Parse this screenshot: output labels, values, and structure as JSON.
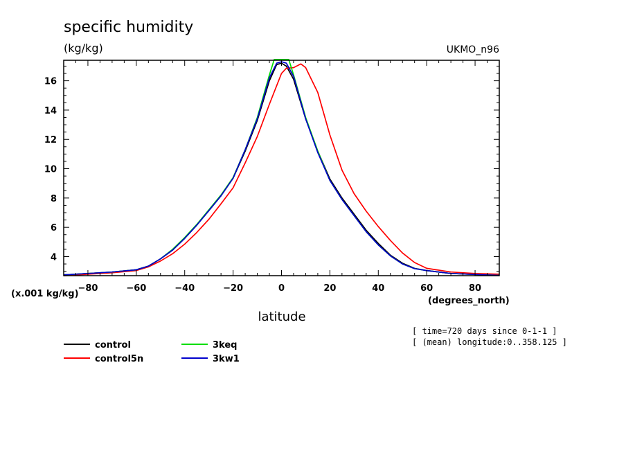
{
  "chart_data": {
    "type": "line",
    "title": "specific humidity",
    "units": "(kg/kg)",
    "model_label": "UKMO_n96",
    "ylabel_scale": "(x.001 kg/kg)",
    "xlabel": "latitude",
    "xunits": "(degrees_north)",
    "xlim": [
      -90,
      90
    ],
    "ylim": [
      2.7,
      17.4
    ],
    "xticks": [
      -80,
      -60,
      -40,
      -20,
      0,
      20,
      40,
      60,
      80
    ],
    "yticks": [
      4,
      6,
      8,
      10,
      12,
      14,
      16
    ],
    "annotations": [
      "[ time=720 days since 0-1-1 ]",
      "[ (mean) longitude:0..358.125 ]"
    ],
    "series": [
      {
        "name": "control",
        "color": "#000000",
        "x": [
          -90,
          -80,
          -70,
          -60,
          -55,
          -50,
          -45,
          -40,
          -35,
          -30,
          -25,
          -20,
          -15,
          -10,
          -5,
          -2,
          0,
          2,
          5,
          10,
          15,
          20,
          25,
          30,
          35,
          40,
          45,
          50,
          55,
          60,
          70,
          80,
          90
        ],
        "y": [
          2.75,
          2.85,
          2.95,
          3.1,
          3.35,
          3.85,
          4.45,
          5.25,
          6.15,
          7.15,
          8.15,
          9.35,
          11.2,
          13.3,
          16.0,
          17.1,
          17.2,
          17.0,
          16.1,
          13.4,
          11.2,
          9.3,
          8.0,
          6.9,
          5.8,
          4.9,
          4.1,
          3.55,
          3.2,
          3.05,
          2.85,
          2.78,
          2.72
        ]
      },
      {
        "name": "control5n",
        "color": "#ff0000",
        "x": [
          -90,
          -80,
          -70,
          -60,
          -55,
          -50,
          -45,
          -40,
          -35,
          -30,
          -25,
          -20,
          -15,
          -10,
          -5,
          0,
          2,
          5,
          8,
          10,
          15,
          20,
          25,
          30,
          35,
          40,
          45,
          50,
          55,
          60,
          70,
          80,
          90
        ],
        "y": [
          2.7,
          2.8,
          2.9,
          3.05,
          3.3,
          3.7,
          4.2,
          4.85,
          5.65,
          6.55,
          7.6,
          8.7,
          10.4,
          12.2,
          14.4,
          16.5,
          16.85,
          16.9,
          17.15,
          16.9,
          15.2,
          12.3,
          9.9,
          8.3,
          7.1,
          6.05,
          5.1,
          4.25,
          3.6,
          3.2,
          2.95,
          2.85,
          2.8
        ]
      },
      {
        "name": "3keq",
        "color": "#00dd00",
        "x": [
          -90,
          -80,
          -70,
          -60,
          -55,
          -50,
          -45,
          -40,
          -35,
          -30,
          -25,
          -20,
          -15,
          -10,
          -5,
          -3,
          0,
          3,
          5,
          10,
          15,
          20,
          25,
          30,
          35,
          40,
          45,
          50,
          55,
          60,
          70,
          80,
          90
        ],
        "y": [
          2.75,
          2.85,
          2.95,
          3.1,
          3.35,
          3.85,
          4.5,
          5.3,
          6.2,
          7.2,
          8.2,
          9.4,
          11.3,
          13.5,
          16.4,
          17.45,
          17.45,
          17.45,
          16.4,
          13.5,
          11.2,
          9.2,
          7.9,
          6.8,
          5.7,
          4.8,
          4.05,
          3.5,
          3.18,
          3.05,
          2.85,
          2.78,
          2.72
        ]
      },
      {
        "name": "3kw1",
        "color": "#0000cc",
        "x": [
          -90,
          -80,
          -70,
          -60,
          -55,
          -50,
          -45,
          -40,
          -35,
          -30,
          -25,
          -20,
          -15,
          -10,
          -5,
          -2,
          0,
          2,
          5,
          10,
          15,
          20,
          25,
          30,
          35,
          40,
          45,
          50,
          55,
          60,
          70,
          80,
          90
        ],
        "y": [
          2.75,
          2.85,
          2.95,
          3.1,
          3.35,
          3.85,
          4.45,
          5.25,
          6.15,
          7.15,
          8.15,
          9.35,
          11.3,
          13.4,
          16.2,
          17.2,
          17.3,
          17.2,
          16.3,
          13.4,
          11.1,
          9.2,
          7.9,
          6.8,
          5.7,
          4.8,
          4.05,
          3.5,
          3.18,
          3.05,
          2.85,
          2.78,
          2.72
        ]
      }
    ],
    "legend": [
      {
        "name": "control",
        "color": "#000000",
        "col": 0,
        "row": 0
      },
      {
        "name": "control5n",
        "color": "#ff0000",
        "col": 0,
        "row": 1
      },
      {
        "name": "3keq",
        "color": "#00dd00",
        "col": 1,
        "row": 0
      },
      {
        "name": "3kw1",
        "color": "#0000cc",
        "col": 1,
        "row": 1
      }
    ],
    "grid": false
  }
}
